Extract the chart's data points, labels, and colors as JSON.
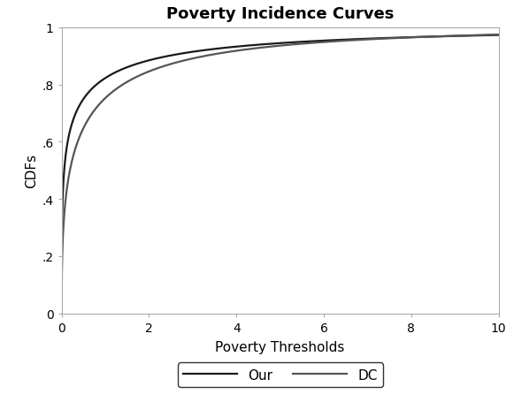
{
  "title": "Poverty Incidence Curves",
  "xlabel": "Poverty Thresholds",
  "ylabel": "CDFs",
  "xlim": [
    0,
    10
  ],
  "ylim": [
    0,
    1
  ],
  "xticks": [
    0,
    2,
    4,
    6,
    8,
    10
  ],
  "yticks": [
    0,
    0.2,
    0.4,
    0.6,
    0.8,
    1.0
  ],
  "ytick_labels": [
    "0",
    ".2",
    ".4",
    ".6",
    ".8",
    "1"
  ],
  "xtick_labels": [
    "0",
    "2",
    "4",
    "6",
    "8",
    "10"
  ],
  "our_color": "#1a1a1a",
  "dc_color": "#555555",
  "line_width": 1.6,
  "legend_labels": [
    "Our",
    "DC"
  ],
  "background_color": "#ffffff",
  "our_weibull_shape": 0.32,
  "our_weibull_scale": 0.18,
  "dc_weibull_shape": 0.42,
  "dc_weibull_scale": 0.45,
  "title_fontsize": 13,
  "label_fontsize": 11,
  "tick_fontsize": 10
}
